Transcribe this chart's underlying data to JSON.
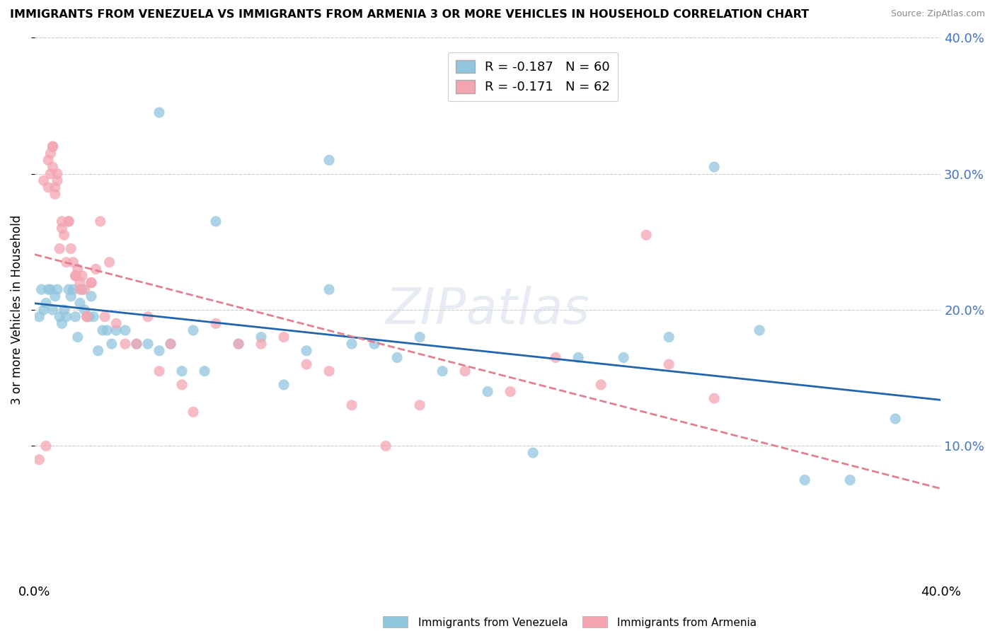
{
  "title": "IMMIGRANTS FROM VENEZUELA VS IMMIGRANTS FROM ARMENIA 3 OR MORE VEHICLES IN HOUSEHOLD CORRELATION CHART",
  "source": "Source: ZipAtlas.com",
  "ylabel": "3 or more Vehicles in Household",
  "legend_venezuela": "Immigrants from Venezuela",
  "legend_armenia": "Immigrants from Armenia",
  "r_venezuela": -0.187,
  "n_venezuela": 60,
  "r_armenia": -0.171,
  "n_armenia": 62,
  "color_venezuela": "#92c5de",
  "color_armenia": "#f4a5b0",
  "color_venezuela_line": "#2166ac",
  "color_armenia_line": "#e08090",
  "xlim": [
    0.0,
    0.4
  ],
  "ylim": [
    0.0,
    0.4
  ],
  "yticks": [
    0.1,
    0.2,
    0.3,
    0.4
  ],
  "ytick_labels": [
    "10.0%",
    "20.0%",
    "30.0%",
    "40.0%"
  ],
  "venezuela_x": [
    0.002,
    0.003,
    0.004,
    0.005,
    0.006,
    0.007,
    0.008,
    0.009,
    0.01,
    0.011,
    0.012,
    0.013,
    0.014,
    0.015,
    0.016,
    0.017,
    0.018,
    0.019,
    0.02,
    0.021,
    0.022,
    0.024,
    0.026,
    0.028,
    0.03,
    0.032,
    0.034,
    0.036,
    0.04,
    0.045,
    0.05,
    0.055,
    0.06,
    0.065,
    0.07,
    0.08,
    0.09,
    0.1,
    0.11,
    0.12,
    0.13,
    0.14,
    0.15,
    0.16,
    0.17,
    0.18,
    0.2,
    0.22,
    0.24,
    0.26,
    0.28,
    0.3,
    0.32,
    0.34,
    0.36,
    0.38,
    0.13,
    0.055,
    0.075,
    0.025
  ],
  "venezuela_y": [
    0.195,
    0.215,
    0.2,
    0.205,
    0.215,
    0.215,
    0.2,
    0.21,
    0.215,
    0.195,
    0.19,
    0.2,
    0.195,
    0.215,
    0.21,
    0.215,
    0.195,
    0.18,
    0.205,
    0.215,
    0.2,
    0.195,
    0.195,
    0.17,
    0.185,
    0.185,
    0.175,
    0.185,
    0.185,
    0.175,
    0.175,
    0.17,
    0.175,
    0.155,
    0.185,
    0.265,
    0.175,
    0.18,
    0.145,
    0.17,
    0.31,
    0.175,
    0.175,
    0.165,
    0.18,
    0.155,
    0.14,
    0.095,
    0.165,
    0.165,
    0.18,
    0.305,
    0.185,
    0.075,
    0.075,
    0.12,
    0.215,
    0.345,
    0.155,
    0.21
  ],
  "armenia_x": [
    0.002,
    0.004,
    0.005,
    0.006,
    0.007,
    0.008,
    0.008,
    0.009,
    0.01,
    0.011,
    0.012,
    0.013,
    0.014,
    0.015,
    0.016,
    0.017,
    0.018,
    0.019,
    0.02,
    0.021,
    0.022,
    0.023,
    0.025,
    0.027,
    0.029,
    0.031,
    0.033,
    0.036,
    0.04,
    0.045,
    0.05,
    0.055,
    0.06,
    0.065,
    0.07,
    0.08,
    0.09,
    0.1,
    0.11,
    0.12,
    0.13,
    0.14,
    0.155,
    0.17,
    0.19,
    0.21,
    0.23,
    0.25,
    0.27,
    0.28,
    0.3,
    0.025,
    0.007,
    0.006,
    0.008,
    0.009,
    0.01,
    0.012,
    0.015,
    0.018,
    0.02,
    0.023
  ],
  "armenia_y": [
    0.09,
    0.295,
    0.1,
    0.29,
    0.3,
    0.32,
    0.305,
    0.285,
    0.295,
    0.245,
    0.265,
    0.255,
    0.235,
    0.265,
    0.245,
    0.235,
    0.225,
    0.23,
    0.22,
    0.225,
    0.215,
    0.195,
    0.22,
    0.23,
    0.265,
    0.195,
    0.235,
    0.19,
    0.175,
    0.175,
    0.195,
    0.155,
    0.175,
    0.145,
    0.125,
    0.19,
    0.175,
    0.175,
    0.18,
    0.16,
    0.155,
    0.13,
    0.1,
    0.13,
    0.155,
    0.14,
    0.165,
    0.145,
    0.255,
    0.16,
    0.135,
    0.22,
    0.315,
    0.31,
    0.32,
    0.29,
    0.3,
    0.26,
    0.265,
    0.225,
    0.215,
    0.195
  ]
}
